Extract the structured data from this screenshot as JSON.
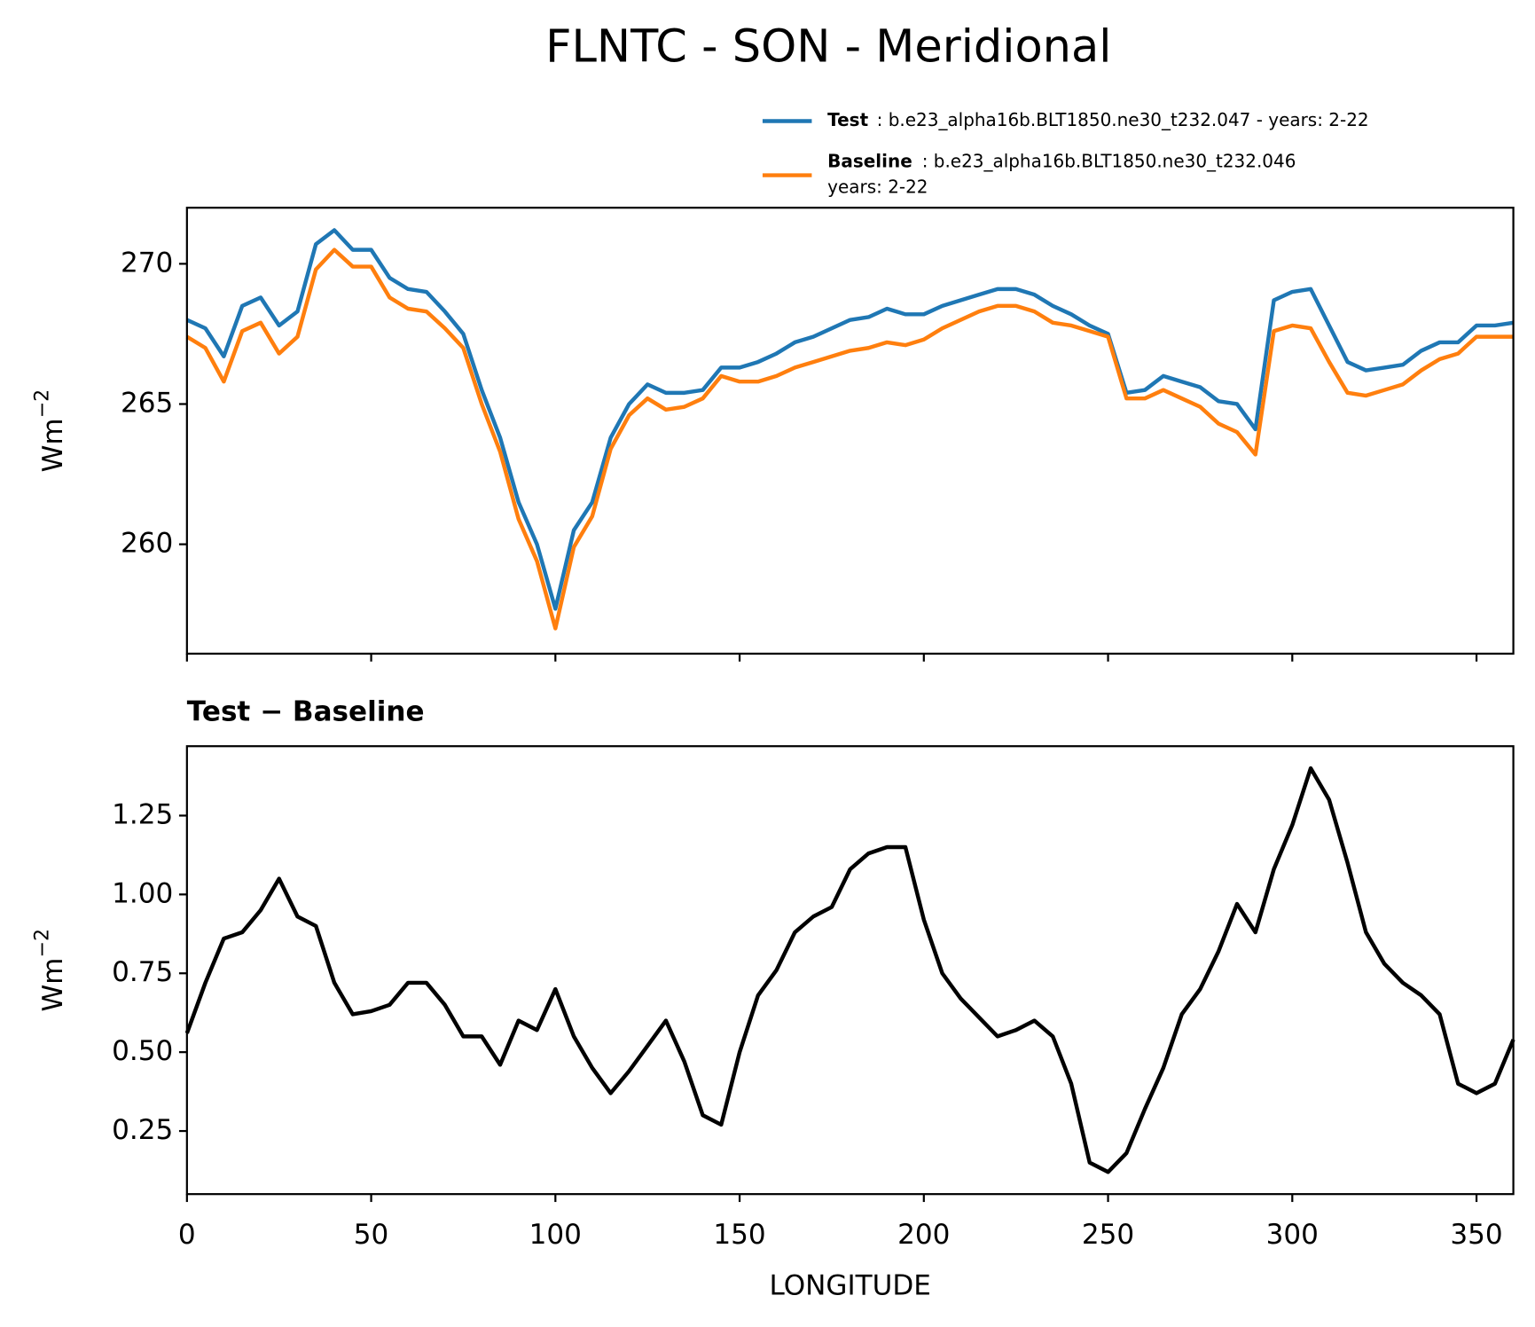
{
  "figure_title": "FLNTC - SON - Meridional",
  "chart_data": [
    {
      "type": "line",
      "ylabel": {
        "base": "Wm",
        "sup": "−2"
      },
      "x": [
        0,
        5,
        10,
        15,
        20,
        25,
        30,
        35,
        40,
        45,
        50,
        55,
        60,
        65,
        70,
        75,
        80,
        85,
        90,
        95,
        100,
        105,
        110,
        115,
        120,
        125,
        130,
        135,
        140,
        145,
        150,
        155,
        160,
        165,
        170,
        175,
        180,
        185,
        190,
        195,
        200,
        205,
        210,
        215,
        220,
        225,
        230,
        235,
        240,
        245,
        250,
        255,
        260,
        265,
        270,
        275,
        280,
        285,
        290,
        295,
        300,
        305,
        310,
        315,
        320,
        325,
        330,
        335,
        340,
        345,
        350,
        355,
        360
      ],
      "series": [
        {
          "name": "Test",
          "legend_text": [
            ": b.e23_alpha16b.BLT1850.ne30_t232.047 - years: 2-22"
          ],
          "color": "#1f77b4",
          "values": [
            268.0,
            267.7,
            266.7,
            268.5,
            268.8,
            267.8,
            268.3,
            270.7,
            271.2,
            270.5,
            270.5,
            269.5,
            269.1,
            269.0,
            268.3,
            267.5,
            265.5,
            263.8,
            261.5,
            260.0,
            257.7,
            260.5,
            261.5,
            263.8,
            265.0,
            265.7,
            265.4,
            265.4,
            265.5,
            266.3,
            266.3,
            266.5,
            266.8,
            267.2,
            267.4,
            267.7,
            268.0,
            268.1,
            268.4,
            268.2,
            268.2,
            268.5,
            268.7,
            268.9,
            269.1,
            269.1,
            268.9,
            268.5,
            268.2,
            267.8,
            267.5,
            265.4,
            265.5,
            266.0,
            265.8,
            265.6,
            265.1,
            265.0,
            264.1,
            268.7,
            269.0,
            269.1,
            267.8,
            266.5,
            266.2,
            266.3,
            266.4,
            266.9,
            267.2,
            267.2,
            267.8,
            267.8,
            267.9
          ]
        },
        {
          "name": "Baseline",
          "legend_text": [
            ": b.e23_alpha16b.BLT1850.ne30_t232.046",
            "years: 2-22"
          ],
          "color": "#ff7f0e",
          "values": [
            267.4,
            267.0,
            265.8,
            267.6,
            267.9,
            266.8,
            267.4,
            269.8,
            270.5,
            269.9,
            269.9,
            268.8,
            268.4,
            268.3,
            267.7,
            267.0,
            265.0,
            263.3,
            260.9,
            259.4,
            257.0,
            259.9,
            261.0,
            263.4,
            264.6,
            265.2,
            264.8,
            264.9,
            265.2,
            266.0,
            265.8,
            265.8,
            266.0,
            266.3,
            266.5,
            266.7,
            266.9,
            267.0,
            267.2,
            267.1,
            267.3,
            267.7,
            268.0,
            268.3,
            268.5,
            268.5,
            268.3,
            267.9,
            267.8,
            267.6,
            267.4,
            265.2,
            265.2,
            265.5,
            265.2,
            264.9,
            264.3,
            264.0,
            263.2,
            267.6,
            267.8,
            267.7,
            266.5,
            265.4,
            265.3,
            265.5,
            265.7,
            266.2,
            266.6,
            266.8,
            267.4,
            267.4,
            267.4
          ]
        }
      ],
      "xlim": [
        0,
        360
      ],
      "xticks": [
        0,
        50,
        100,
        150,
        200,
        250,
        300,
        350
      ],
      "xtick_labels": false,
      "ylim": [
        256.1,
        272.0
      ],
      "yticks": [
        260,
        265,
        270
      ],
      "legend": "upper right",
      "grid": false
    },
    {
      "type": "line",
      "title": "Test − Baseline",
      "xlabel": "LONGITUDE",
      "ylabel": {
        "base": "Wm",
        "sup": "−2"
      },
      "x": [
        0,
        5,
        10,
        15,
        20,
        25,
        30,
        35,
        40,
        45,
        50,
        55,
        60,
        65,
        70,
        75,
        80,
        85,
        90,
        95,
        100,
        105,
        110,
        115,
        120,
        125,
        130,
        135,
        140,
        145,
        150,
        155,
        160,
        165,
        170,
        175,
        180,
        185,
        190,
        195,
        200,
        205,
        210,
        215,
        220,
        225,
        230,
        235,
        240,
        245,
        250,
        255,
        260,
        265,
        270,
        275,
        280,
        285,
        290,
        295,
        300,
        305,
        310,
        315,
        320,
        325,
        330,
        335,
        340,
        345,
        350,
        355,
        360
      ],
      "series": [
        {
          "color": "#000000",
          "values": [
            0.56,
            0.72,
            0.86,
            0.88,
            0.95,
            1.05,
            0.93,
            0.9,
            0.72,
            0.62,
            0.63,
            0.65,
            0.72,
            0.72,
            0.65,
            0.55,
            0.55,
            0.46,
            0.6,
            0.57,
            0.7,
            0.55,
            0.45,
            0.37,
            0.44,
            0.52,
            0.6,
            0.47,
            0.3,
            0.27,
            0.5,
            0.68,
            0.76,
            0.88,
            0.93,
            0.96,
            1.08,
            1.13,
            1.15,
            1.15,
            0.92,
            0.75,
            0.67,
            0.61,
            0.55,
            0.57,
            0.6,
            0.55,
            0.4,
            0.15,
            0.12,
            0.18,
            0.32,
            0.45,
            0.62,
            0.7,
            0.82,
            0.97,
            0.88,
            1.08,
            1.22,
            1.4,
            1.3,
            1.1,
            0.88,
            0.78,
            0.72,
            0.68,
            0.62,
            0.4,
            0.37,
            0.4,
            0.54
          ]
        }
      ],
      "xlim": [
        0,
        360
      ],
      "xticks": [
        0,
        50,
        100,
        150,
        200,
        250,
        300,
        350
      ],
      "xtick_labels": true,
      "ylim": [
        0.05,
        1.47
      ],
      "yticks": [
        0.25,
        {
          "value": 0.5,
          "label": "0.50"
        },
        0.75,
        {
          "value": 1.0,
          "label": "1.00"
        },
        1.25
      ],
      "grid": false
    }
  ]
}
